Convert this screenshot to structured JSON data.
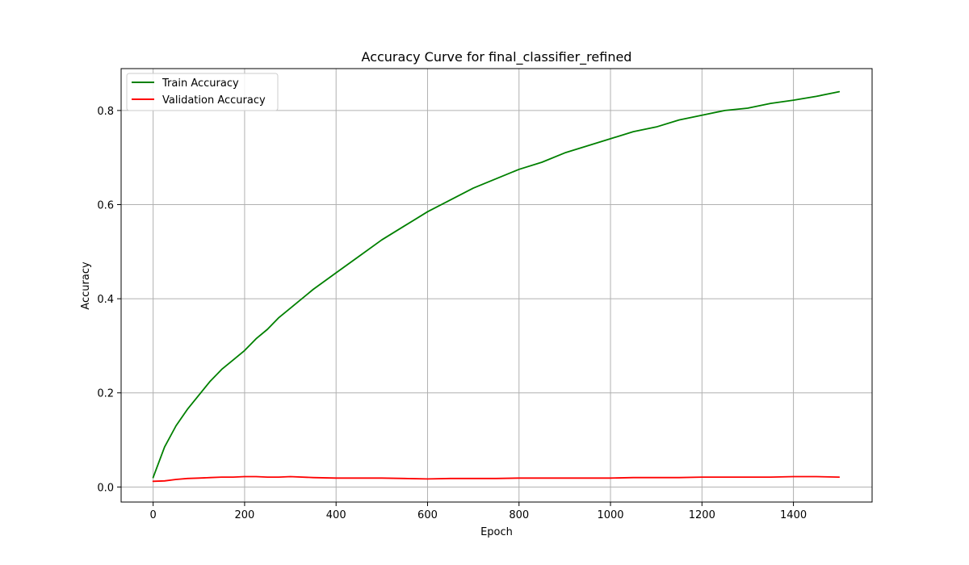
{
  "chart_data": {
    "type": "line",
    "title": "Accuracy Curve for final_classifier_refined",
    "xlabel": "Epoch",
    "ylabel": "Accuracy",
    "xlim": [
      -70,
      1572
    ],
    "ylim": [
      -0.032,
      0.889
    ],
    "xticks": [
      0,
      200,
      400,
      600,
      800,
      1000,
      1200,
      1400
    ],
    "xtick_labels": [
      "0",
      "200",
      "400",
      "600",
      "800",
      "1000",
      "1200",
      "1400"
    ],
    "yticks": [
      0.0,
      0.2,
      0.4,
      0.6,
      0.8
    ],
    "ytick_labels": [
      "0.0",
      "0.2",
      "0.4",
      "0.6",
      "0.8"
    ],
    "grid": true,
    "legend_position": "upper-left",
    "series": [
      {
        "name": "Train Accuracy",
        "color": "#008000",
        "x": [
          0,
          25,
          50,
          75,
          100,
          125,
          150,
          175,
          200,
          225,
          250,
          275,
          300,
          350,
          400,
          450,
          500,
          550,
          600,
          650,
          700,
          750,
          800,
          850,
          900,
          950,
          1000,
          1050,
          1100,
          1150,
          1200,
          1250,
          1300,
          1350,
          1400,
          1450,
          1500
        ],
        "values": [
          0.02,
          0.085,
          0.13,
          0.165,
          0.195,
          0.225,
          0.25,
          0.27,
          0.29,
          0.315,
          0.335,
          0.36,
          0.38,
          0.42,
          0.455,
          0.49,
          0.525,
          0.555,
          0.585,
          0.61,
          0.635,
          0.655,
          0.675,
          0.69,
          0.71,
          0.725,
          0.74,
          0.755,
          0.765,
          0.78,
          0.79,
          0.8,
          0.805,
          0.815,
          0.822,
          0.83,
          0.84
        ]
      },
      {
        "name": "Validation Accuracy",
        "color": "#ff0000",
        "x": [
          0,
          25,
          50,
          75,
          100,
          125,
          150,
          175,
          200,
          225,
          250,
          275,
          300,
          350,
          400,
          450,
          500,
          550,
          600,
          650,
          700,
          750,
          800,
          850,
          900,
          950,
          1000,
          1050,
          1100,
          1150,
          1200,
          1250,
          1300,
          1350,
          1400,
          1450,
          1500
        ],
        "values": [
          0.012,
          0.013,
          0.016,
          0.018,
          0.019,
          0.02,
          0.021,
          0.021,
          0.022,
          0.022,
          0.021,
          0.021,
          0.022,
          0.02,
          0.019,
          0.019,
          0.019,
          0.018,
          0.017,
          0.018,
          0.018,
          0.018,
          0.019,
          0.019,
          0.019,
          0.019,
          0.019,
          0.02,
          0.02,
          0.02,
          0.021,
          0.021,
          0.021,
          0.021,
          0.022,
          0.022,
          0.021
        ]
      }
    ]
  }
}
